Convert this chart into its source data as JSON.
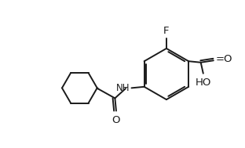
{
  "bg_color": "#ffffff",
  "line_color": "#1a1a1a",
  "line_width": 1.4,
  "font_size": 8.5,
  "figsize": [
    3.12,
    1.89
  ],
  "dpi": 100,
  "xlim": [
    0,
    10
  ],
  "ylim": [
    0,
    6
  ]
}
